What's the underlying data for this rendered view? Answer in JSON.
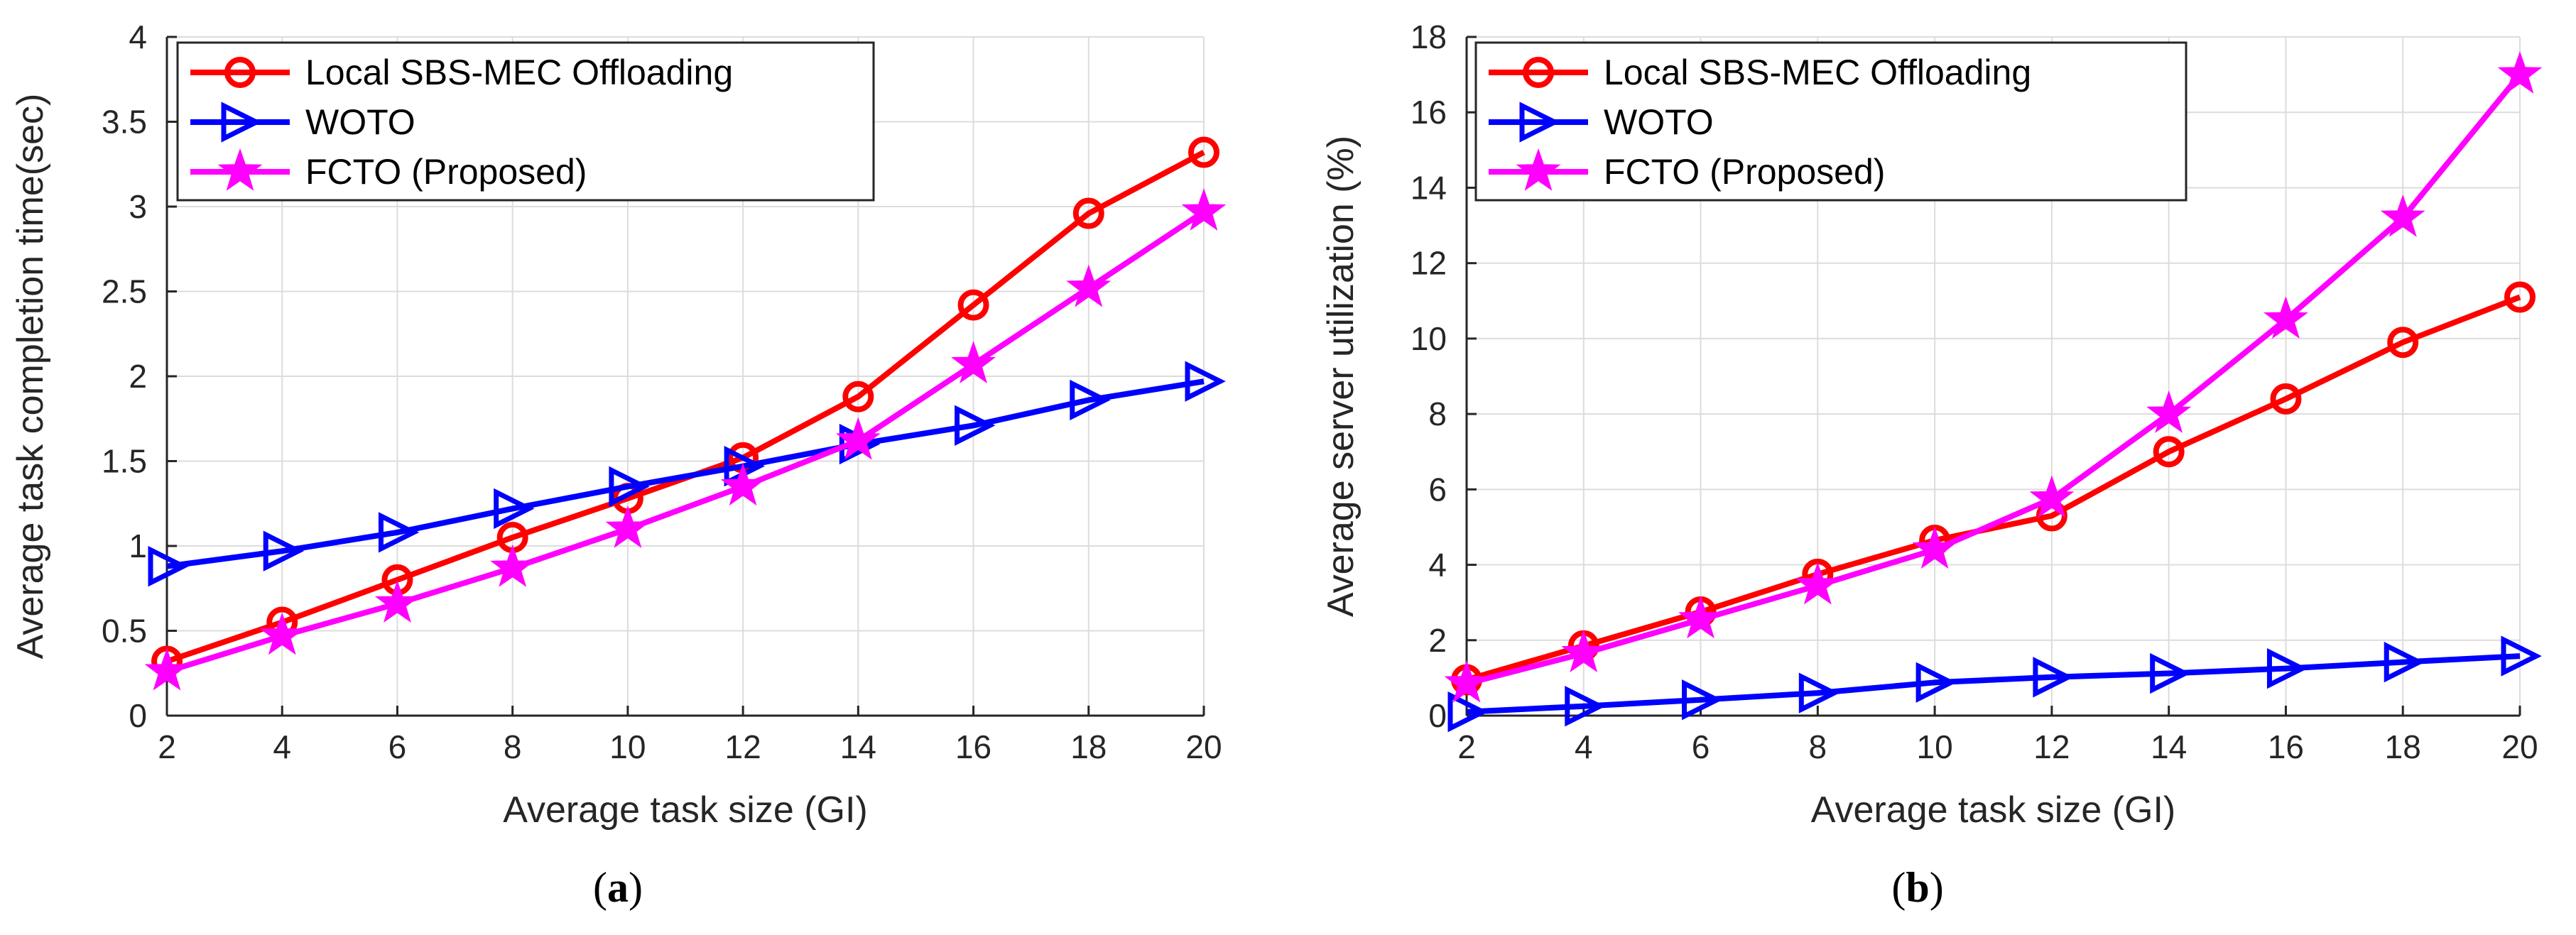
{
  "figure": {
    "captions": [
      {
        "open": "(",
        "letter": "a",
        "close": ")"
      },
      {
        "open": "(",
        "letter": "b",
        "close": ")"
      }
    ]
  },
  "chart_data": [
    {
      "type": "line",
      "panel": "a",
      "title": "",
      "xlabel": "Average task size (GI)",
      "ylabel": "Average task completion time(sec)",
      "x": [
        2,
        4,
        6,
        8,
        10,
        12,
        14,
        16,
        18,
        20
      ],
      "xlim": [
        2,
        20
      ],
      "ylim": [
        0,
        4
      ],
      "xticks": [
        "2",
        "4",
        "6",
        "8",
        "10",
        "12",
        "14",
        "16",
        "18",
        "20"
      ],
      "yticks": [
        "0",
        "0.5",
        "1",
        "1.5",
        "2",
        "2.5",
        "3",
        "3.5",
        "4"
      ],
      "grid": true,
      "legend_location": "top-left",
      "series": [
        {
          "name": "Local SBS-MEC Offloading",
          "color": "#ff0000",
          "marker": "circle",
          "values": [
            0.32,
            0.55,
            0.8,
            1.05,
            1.28,
            1.52,
            1.88,
            2.42,
            2.96,
            3.32
          ]
        },
        {
          "name": "WOTO",
          "color": "#0000ff",
          "marker": "triangle-right",
          "values": [
            0.88,
            0.97,
            1.08,
            1.22,
            1.35,
            1.47,
            1.6,
            1.71,
            1.86,
            1.97
          ]
        },
        {
          "name": "FCTO (Proposed)",
          "color": "#ff00ff",
          "marker": "star",
          "values": [
            0.26,
            0.47,
            0.66,
            0.87,
            1.1,
            1.35,
            1.62,
            2.07,
            2.52,
            2.97
          ]
        }
      ]
    },
    {
      "type": "line",
      "panel": "b",
      "title": "",
      "xlabel": "Average task size (GI)",
      "ylabel": "Average server utilization (%)",
      "x": [
        2,
        4,
        6,
        8,
        10,
        12,
        14,
        16,
        18,
        20
      ],
      "xlim": [
        2,
        20
      ],
      "ylim": [
        0,
        18
      ],
      "xticks": [
        "2",
        "4",
        "6",
        "8",
        "10",
        "12",
        "14",
        "16",
        "18",
        "20"
      ],
      "yticks": [
        "0",
        "2",
        "4",
        "6",
        "8",
        "10",
        "12",
        "14",
        "16",
        "18"
      ],
      "grid": true,
      "legend_location": "top-left",
      "series": [
        {
          "name": "Local SBS-MEC Offloading",
          "color": "#ff0000",
          "marker": "circle",
          "values": [
            0.95,
            1.85,
            2.75,
            3.75,
            4.65,
            5.3,
            7.0,
            8.4,
            9.9,
            11.1
          ]
        },
        {
          "name": "WOTO",
          "color": "#0000ff",
          "marker": "triangle-right",
          "values": [
            0.1,
            0.25,
            0.42,
            0.6,
            0.88,
            1.02,
            1.12,
            1.25,
            1.42,
            1.58
          ]
        },
        {
          "name": "FCTO (Proposed)",
          "color": "#ff00ff",
          "marker": "star",
          "values": [
            0.85,
            1.65,
            2.55,
            3.45,
            4.4,
            5.75,
            8.0,
            10.5,
            13.2,
            17.0
          ]
        }
      ]
    }
  ]
}
